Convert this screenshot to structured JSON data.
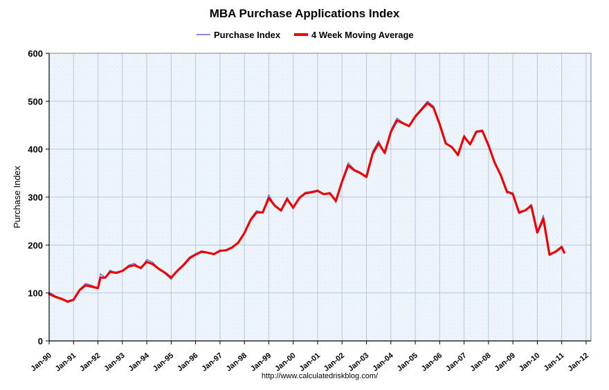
{
  "chart_data": {
    "type": "line",
    "title": "MBA Purchase Applications Index",
    "ylabel": "Purchase Index",
    "xlabel": "",
    "ylim": [
      0,
      600
    ],
    "yticks": [
      0,
      100,
      200,
      300,
      400,
      500,
      600
    ],
    "xlim": [
      1990.0,
      2012.2
    ],
    "xticks": [
      {
        "label": "Jan-90",
        "year": 1990
      },
      {
        "label": "Jan-91",
        "year": 1991
      },
      {
        "label": "Jan-92",
        "year": 1992
      },
      {
        "label": "Jan-93",
        "year": 1993
      },
      {
        "label": "Jan-94",
        "year": 1994
      },
      {
        "label": "Jan-95",
        "year": 1995
      },
      {
        "label": "Jan-96",
        "year": 1996
      },
      {
        "label": "Jan-97",
        "year": 1997
      },
      {
        "label": "Jan-98",
        "year": 1998
      },
      {
        "label": "Jan-99",
        "year": 1999
      },
      {
        "label": "Jan-00",
        "year": 2000
      },
      {
        "label": "Jan-01",
        "year": 2001
      },
      {
        "label": "Jan-02",
        "year": 2002
      },
      {
        "label": "Jan-03",
        "year": 2003
      },
      {
        "label": "Jan-04",
        "year": 2004
      },
      {
        "label": "Jan-05",
        "year": 2005
      },
      {
        "label": "Jan-06",
        "year": 2006
      },
      {
        "label": "Jan-07",
        "year": 2007
      },
      {
        "label": "Jan-08",
        "year": 2008
      },
      {
        "label": "Jan-09",
        "year": 2009
      },
      {
        "label": "Jan-10",
        "year": 2010
      },
      {
        "label": "Jan-11",
        "year": 2011
      },
      {
        "label": "Jan-12",
        "year": 2012
      }
    ],
    "grid": true,
    "legend_position": "top-center",
    "series": [
      {
        "name": "Purchase Index",
        "color": "#6666dd",
        "points": [
          [
            1990.0,
            102
          ],
          [
            1990.25,
            94
          ],
          [
            1990.5,
            88
          ],
          [
            1990.75,
            80
          ],
          [
            1991.0,
            84
          ],
          [
            1991.25,
            108
          ],
          [
            1991.5,
            120
          ],
          [
            1991.75,
            116
          ],
          [
            1992.0,
            110
          ],
          [
            1992.1,
            140
          ],
          [
            1992.3,
            132
          ],
          [
            1992.5,
            148
          ],
          [
            1992.75,
            140
          ],
          [
            1993.0,
            145
          ],
          [
            1993.25,
            158
          ],
          [
            1993.5,
            162
          ],
          [
            1993.75,
            150
          ],
          [
            1994.0,
            170
          ],
          [
            1994.25,
            164
          ],
          [
            1994.5,
            150
          ],
          [
            1994.75,
            140
          ],
          [
            1995.0,
            128
          ],
          [
            1995.25,
            148
          ],
          [
            1995.5,
            160
          ],
          [
            1995.75,
            175
          ],
          [
            1996.0,
            182
          ],
          [
            1996.25,
            188
          ],
          [
            1996.5,
            185
          ],
          [
            1996.75,
            180
          ],
          [
            1997.0,
            190
          ],
          [
            1997.25,
            188
          ],
          [
            1997.5,
            195
          ],
          [
            1997.75,
            205
          ],
          [
            1998.0,
            225
          ],
          [
            1998.25,
            255
          ],
          [
            1998.5,
            272
          ],
          [
            1998.75,
            268
          ],
          [
            1999.0,
            305
          ],
          [
            1999.25,
            282
          ],
          [
            1999.5,
            270
          ],
          [
            1999.75,
            300
          ],
          [
            2000.0,
            275
          ],
          [
            2000.25,
            300
          ],
          [
            2000.5,
            310
          ],
          [
            2000.75,
            312
          ],
          [
            2001.0,
            315
          ],
          [
            2001.25,
            305
          ],
          [
            2001.5,
            310
          ],
          [
            2001.75,
            288
          ],
          [
            2002.0,
            335
          ],
          [
            2002.25,
            372
          ],
          [
            2002.5,
            358
          ],
          [
            2002.75,
            352
          ],
          [
            2003.0,
            340
          ],
          [
            2003.25,
            395
          ],
          [
            2003.5,
            418
          ],
          [
            2003.75,
            390
          ],
          [
            2004.0,
            440
          ],
          [
            2004.25,
            465
          ],
          [
            2004.5,
            455
          ],
          [
            2004.75,
            448
          ],
          [
            2005.0,
            470
          ],
          [
            2005.25,
            485
          ],
          [
            2005.5,
            500
          ],
          [
            2005.75,
            490
          ],
          [
            2006.0,
            455
          ],
          [
            2006.25,
            410
          ],
          [
            2006.5,
            405
          ],
          [
            2006.75,
            385
          ],
          [
            2007.0,
            430
          ],
          [
            2007.25,
            408
          ],
          [
            2007.5,
            438
          ],
          [
            2007.75,
            440
          ],
          [
            2008.0,
            410
          ],
          [
            2008.25,
            370
          ],
          [
            2008.5,
            345
          ],
          [
            2008.75,
            308
          ],
          [
            2009.0,
            310
          ],
          [
            2009.25,
            265
          ],
          [
            2009.5,
            272
          ],
          [
            2009.75,
            285
          ],
          [
            2010.0,
            228
          ],
          [
            2010.25,
            262
          ],
          [
            2010.5,
            178
          ],
          [
            2010.75,
            188
          ],
          [
            2011.0,
            198
          ],
          [
            2011.1,
            183
          ]
        ]
      },
      {
        "name": "4 Week Moving Average",
        "color": "#ee0000",
        "points": [
          [
            1990.0,
            98
          ],
          [
            1990.25,
            92
          ],
          [
            1990.5,
            88
          ],
          [
            1990.75,
            82
          ],
          [
            1991.0,
            86
          ],
          [
            1991.25,
            106
          ],
          [
            1991.5,
            116
          ],
          [
            1991.75,
            113
          ],
          [
            1992.0,
            110
          ],
          [
            1992.1,
            132
          ],
          [
            1992.3,
            132
          ],
          [
            1992.5,
            144
          ],
          [
            1992.75,
            142
          ],
          [
            1993.0,
            146
          ],
          [
            1993.25,
            155
          ],
          [
            1993.5,
            158
          ],
          [
            1993.75,
            152
          ],
          [
            1994.0,
            165
          ],
          [
            1994.25,
            160
          ],
          [
            1994.5,
            150
          ],
          [
            1994.75,
            142
          ],
          [
            1995.0,
            132
          ],
          [
            1995.25,
            146
          ],
          [
            1995.5,
            158
          ],
          [
            1995.75,
            172
          ],
          [
            1996.0,
            180
          ],
          [
            1996.25,
            186
          ],
          [
            1996.5,
            184
          ],
          [
            1996.75,
            181
          ],
          [
            1997.0,
            188
          ],
          [
            1997.25,
            189
          ],
          [
            1997.5,
            195
          ],
          [
            1997.75,
            205
          ],
          [
            1998.0,
            225
          ],
          [
            1998.25,
            252
          ],
          [
            1998.5,
            268
          ],
          [
            1998.75,
            268
          ],
          [
            1999.0,
            298
          ],
          [
            1999.25,
            282
          ],
          [
            1999.5,
            272
          ],
          [
            1999.75,
            296
          ],
          [
            2000.0,
            278
          ],
          [
            2000.25,
            298
          ],
          [
            2000.5,
            308
          ],
          [
            2000.75,
            310
          ],
          [
            2001.0,
            313
          ],
          [
            2001.25,
            306
          ],
          [
            2001.5,
            308
          ],
          [
            2001.75,
            292
          ],
          [
            2002.0,
            332
          ],
          [
            2002.25,
            366
          ],
          [
            2002.5,
            356
          ],
          [
            2002.75,
            350
          ],
          [
            2003.0,
            342
          ],
          [
            2003.25,
            390
          ],
          [
            2003.5,
            412
          ],
          [
            2003.75,
            392
          ],
          [
            2004.0,
            436
          ],
          [
            2004.25,
            460
          ],
          [
            2004.5,
            454
          ],
          [
            2004.75,
            448
          ],
          [
            2005.0,
            468
          ],
          [
            2005.25,
            482
          ],
          [
            2005.5,
            496
          ],
          [
            2005.75,
            486
          ],
          [
            2006.0,
            452
          ],
          [
            2006.25,
            412
          ],
          [
            2006.5,
            404
          ],
          [
            2006.75,
            388
          ],
          [
            2007.0,
            426
          ],
          [
            2007.25,
            410
          ],
          [
            2007.5,
            436
          ],
          [
            2007.75,
            438
          ],
          [
            2008.0,
            408
          ],
          [
            2008.25,
            372
          ],
          [
            2008.5,
            346
          ],
          [
            2008.75,
            312
          ],
          [
            2009.0,
            306
          ],
          [
            2009.25,
            268
          ],
          [
            2009.5,
            272
          ],
          [
            2009.75,
            282
          ],
          [
            2010.0,
            226
          ],
          [
            2010.25,
            255
          ],
          [
            2010.5,
            180
          ],
          [
            2010.75,
            186
          ],
          [
            2011.0,
            196
          ],
          [
            2011.1,
            184
          ]
        ]
      }
    ],
    "credit": "http://www.calculatedriskblog.com/"
  },
  "colors": {
    "plot_bg": "#eef4fc",
    "grid": "#b8c8dc",
    "axis": "#000000"
  }
}
